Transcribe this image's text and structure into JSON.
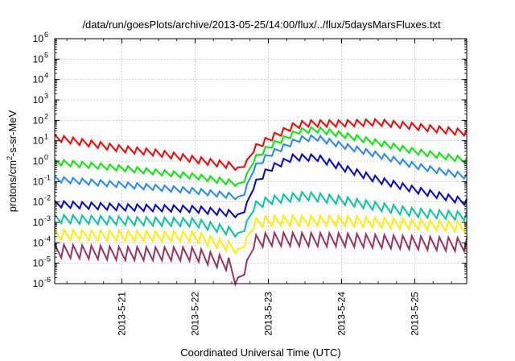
{
  "chart_data": {
    "type": "line",
    "title": "/data/run/goesPlots/archive/2013-05-25/14:00/flux/../flux/5daysMarsFluxes.txt",
    "xlabel": "Coordinated Universal Time (UTC)",
    "ylabel": "protons/cm2-s-sr-MeV",
    "ylabel_parts": {
      "pre": "protons/cm",
      "sup": "2",
      "post": "-s-sr-MeV"
    },
    "x_scale": "time (days)",
    "y_scale": "log10",
    "xlim": [
      "2013-05-20 02:00",
      "2013-05-25 17:00"
    ],
    "ylim": [
      1e-06,
      1000000.0
    ],
    "grid": true,
    "legend": "none",
    "x_ticks": [
      {
        "value": "2013-05-21",
        "label": "2013-5-21"
      },
      {
        "value": "2013-05-22",
        "label": "2013-5-22"
      },
      {
        "value": "2013-05-23",
        "label": "2013-5-23"
      },
      {
        "value": "2013-05-24",
        "label": "2013-5-24"
      },
      {
        "value": "2013-05-25",
        "label": "2013-5-25"
      }
    ],
    "y_ticks": [
      {
        "value": 1e-06,
        "base": "10",
        "exp": "-6"
      },
      {
        "value": 1e-05,
        "base": "10",
        "exp": "-5"
      },
      {
        "value": 0.0001,
        "base": "10",
        "exp": "-4"
      },
      {
        "value": 0.001,
        "base": "10",
        "exp": "-3"
      },
      {
        "value": 0.01,
        "base": "10",
        "exp": "-2"
      },
      {
        "value": 0.1,
        "base": "10",
        "exp": "-1"
      },
      {
        "value": 1,
        "base": "10",
        "exp": "0"
      },
      {
        "value": 10,
        "base": "10",
        "exp": "1"
      },
      {
        "value": 100,
        "base": "10",
        "exp": "2"
      },
      {
        "value": 1000,
        "base": "10",
        "exp": "3"
      },
      {
        "value": 10000,
        "base": "10",
        "exp": "4"
      },
      {
        "value": 100000,
        "base": "10",
        "exp": "5"
      },
      {
        "value": 1000000,
        "base": "10",
        "exp": "6"
      }
    ],
    "sawtooth_period_hours": 3,
    "series": [
      {
        "color": "#ff0000",
        "points": [
          [
            "2013-05-20 02:00",
            14
          ],
          [
            "2013-05-20 12:00",
            8
          ],
          [
            "2013-05-21 00:00",
            4
          ],
          [
            "2013-05-21 12:00",
            2.5
          ],
          [
            "2013-05-22 00:00",
            1.2
          ],
          [
            "2013-05-22 12:00",
            0.6
          ],
          [
            "2013-05-22 15:00",
            0.45
          ],
          [
            "2013-05-22 16:00",
            0.45
          ],
          [
            "2013-05-22 18:00",
            3
          ],
          [
            "2013-05-23 00:00",
            12
          ],
          [
            "2013-05-23 08:00",
            50
          ],
          [
            "2013-05-23 12:00",
            70
          ],
          [
            "2013-05-24 00:00",
            70
          ],
          [
            "2013-05-24 12:00",
            80
          ],
          [
            "2013-05-25 00:00",
            50
          ],
          [
            "2013-05-25 12:00",
            30
          ],
          [
            "2013-05-25 17:00",
            25
          ]
        ],
        "amplitude": 2.1
      },
      {
        "color": "#00ee00",
        "points": [
          [
            "2013-05-20 02:00",
            0.9
          ],
          [
            "2013-05-21 00:00",
            0.45
          ],
          [
            "2013-05-22 00:00",
            0.18
          ],
          [
            "2013-05-22 14:00",
            0.08
          ],
          [
            "2013-05-22 16:00",
            0.08
          ],
          [
            "2013-05-22 18:00",
            0.8
          ],
          [
            "2013-05-23 00:00",
            5
          ],
          [
            "2013-05-23 10:00",
            30
          ],
          [
            "2013-05-23 16:00",
            35
          ],
          [
            "2013-05-24 00:00",
            20
          ],
          [
            "2013-05-24 12:00",
            8
          ],
          [
            "2013-05-25 00:00",
            3
          ],
          [
            "2013-05-25 12:00",
            1.5
          ],
          [
            "2013-05-25 17:00",
            1.1
          ]
        ],
        "amplitude": 1.9
      },
      {
        "color": "#2288ff",
        "points": [
          [
            "2013-05-20 02:00",
            0.13
          ],
          [
            "2013-05-21 00:00",
            0.07
          ],
          [
            "2013-05-22 00:00",
            0.035
          ],
          [
            "2013-05-22 14:00",
            0.018
          ],
          [
            "2013-05-22 16:00",
            0.018
          ],
          [
            "2013-05-22 18:00",
            0.3
          ],
          [
            "2013-05-23 00:00",
            2
          ],
          [
            "2013-05-23 10:00",
            12
          ],
          [
            "2013-05-23 16:00",
            14
          ],
          [
            "2013-05-24 00:00",
            6
          ],
          [
            "2013-05-24 12:00",
            2
          ],
          [
            "2013-05-25 00:00",
            0.6
          ],
          [
            "2013-05-25 12:00",
            0.25
          ],
          [
            "2013-05-25 17:00",
            0.18
          ]
        ],
        "amplitude": 1.9
      },
      {
        "color": "#0000dd",
        "points": [
          [
            "2013-05-20 02:00",
            0.008
          ],
          [
            "2013-05-21 00:00",
            0.0055
          ],
          [
            "2013-05-22 00:00",
            0.0045
          ],
          [
            "2013-05-22 14:00",
            0.0025
          ],
          [
            "2013-05-22 16:00",
            0.0025
          ],
          [
            "2013-05-22 18:00",
            0.04
          ],
          [
            "2013-05-23 00:00",
            0.4
          ],
          [
            "2013-05-23 08:00",
            1.5
          ],
          [
            "2013-05-23 16:00",
            1.5
          ],
          [
            "2013-05-24 00:00",
            0.5
          ],
          [
            "2013-05-24 12:00",
            0.12
          ],
          [
            "2013-05-25 00:00",
            0.04
          ],
          [
            "2013-05-25 12:00",
            0.015
          ],
          [
            "2013-05-25 17:00",
            0.01
          ]
        ],
        "amplitude": 2.1
      },
      {
        "color": "#00c8a0",
        "points": [
          [
            "2013-05-20 02:00",
            0.0015
          ],
          [
            "2013-05-21 00:00",
            0.0012
          ],
          [
            "2013-05-22 00:00",
            0.001
          ],
          [
            "2013-05-22 14:00",
            0.0003
          ],
          [
            "2013-05-22 16:00",
            0.0003
          ],
          [
            "2013-05-22 18:00",
            0.005
          ],
          [
            "2013-05-23 00:00",
            0.012
          ],
          [
            "2013-05-23 12:00",
            0.02
          ],
          [
            "2013-05-24 00:00",
            0.012
          ],
          [
            "2013-05-24 12:00",
            0.006
          ],
          [
            "2013-05-25 00:00",
            0.003
          ],
          [
            "2013-05-25 17:00",
            0.002
          ]
        ],
        "amplitude": 2.6
      },
      {
        "color": "#ffee00",
        "points": [
          [
            "2013-05-20 02:00",
            0.00025
          ],
          [
            "2013-05-21 00:00",
            0.00022
          ],
          [
            "2013-05-22 00:00",
            0.0002
          ],
          [
            "2013-05-22 14:00",
            5e-05
          ],
          [
            "2013-05-22 16:00",
            5e-05
          ],
          [
            "2013-05-22 18:00",
            0.0008
          ],
          [
            "2013-05-23 00:00",
            0.0012
          ],
          [
            "2013-05-24 00:00",
            0.0012
          ],
          [
            "2013-05-25 00:00",
            0.0008
          ],
          [
            "2013-05-25 17:00",
            0.0006
          ]
        ],
        "amplitude": 3.2
      },
      {
        "color": "#993366",
        "points": [
          [
            "2013-05-20 02:00",
            4e-05
          ],
          [
            "2013-05-21 00:00",
            3e-05
          ],
          [
            "2013-05-22 00:00",
            2.8e-05
          ],
          [
            "2013-05-22 12:00",
            8e-06
          ],
          [
            "2013-05-22 13:00",
            2e-06
          ],
          [
            "2013-05-22 16:00",
            2e-06
          ],
          [
            "2013-05-22 18:00",
            0.0001
          ],
          [
            "2013-05-23 00:00",
            0.00015
          ],
          [
            "2013-05-24 00:00",
            0.00014
          ],
          [
            "2013-05-25 00:00",
            0.0001
          ],
          [
            "2013-05-25 17:00",
            8e-05
          ]
        ],
        "amplitude": 4.5
      }
    ]
  }
}
